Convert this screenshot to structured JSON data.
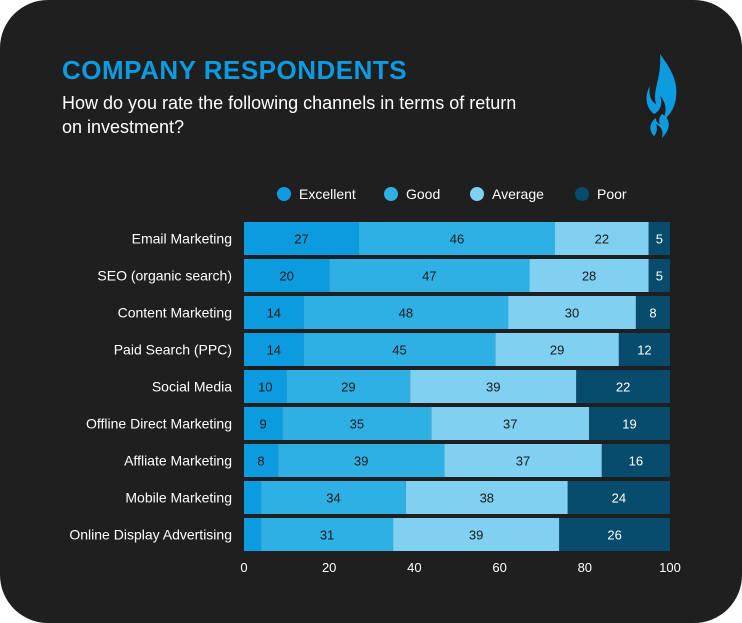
{
  "header": {
    "title": "COMPANY RESPONDENTS",
    "subtitle": "How do you rate the following channels in terms of return on investment?"
  },
  "colors": {
    "background": "#1f1f1f",
    "title": "#0d9be0",
    "series": [
      "#0d9be0",
      "#2eb0e4",
      "#7fd0f1",
      "#084c6d"
    ],
    "label_dark": "#1a1a1a",
    "label_light": "#ffffff"
  },
  "logo": {
    "icon": "flame-icon"
  },
  "chart_data": {
    "type": "bar",
    "orientation": "horizontal",
    "stacked": true,
    "categories": [
      "Email Marketing",
      "SEO (organic search)",
      "Content Marketing",
      "Paid Search (PPC)",
      "Social Media",
      "Offline Direct Marketing",
      "Affliate Marketing",
      "Mobile Marketing",
      "Online Display Advertising"
    ],
    "series": [
      {
        "name": "Excellent",
        "values": [
          27,
          20,
          14,
          14,
          10,
          9,
          8,
          4,
          4
        ],
        "labels": [
          "27",
          "20",
          "14",
          "14",
          "10",
          "9",
          "8",
          "",
          ""
        ]
      },
      {
        "name": "Good",
        "values": [
          46,
          47,
          48,
          45,
          29,
          35,
          39,
          34,
          31
        ],
        "labels": [
          "46",
          "47",
          "48",
          "45",
          "29",
          "35",
          "39",
          "34",
          "31"
        ]
      },
      {
        "name": "Average",
        "values": [
          22,
          28,
          30,
          29,
          39,
          37,
          37,
          38,
          39
        ],
        "labels": [
          "22",
          "28",
          "30",
          "29",
          "39",
          "37",
          "37",
          "38",
          "39"
        ]
      },
      {
        "name": "Poor",
        "values": [
          5,
          5,
          8,
          12,
          22,
          19,
          16,
          24,
          26
        ],
        "labels": [
          "5",
          "5",
          "8",
          "12",
          "22",
          "19",
          "16",
          "24",
          "26"
        ]
      }
    ],
    "xlim": [
      0,
      100
    ],
    "xticks": [
      "0",
      "20",
      "40",
      "60",
      "80",
      "100"
    ],
    "legend_position": "top",
    "grid": false
  }
}
